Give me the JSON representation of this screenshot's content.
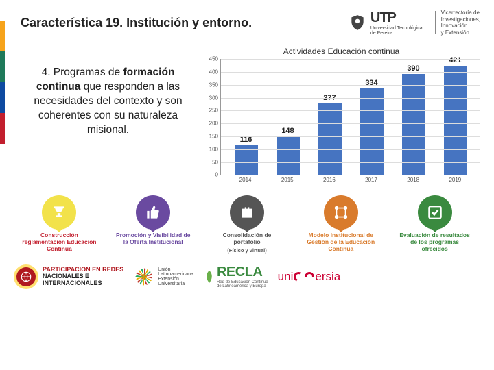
{
  "accent_colors": [
    "#f6a31b",
    "#1f7a5a",
    "#0e4aa1",
    "#c21f2e"
  ],
  "header": {
    "title": "Característica 19. Institución y entorno.",
    "utp": "UTP",
    "utp_sub": "Universidad Tecnológica\nde Pereira",
    "vicer": "Vicerrectoría de\nInvestigaciones,\nInnovación\ny Extensión"
  },
  "desc_html": "4. Programas de <b>formación continua</b> que responden a las necesidades del contexto y son coherentes con su naturaleza misional.",
  "chart": {
    "title": "Actividades Educación continua",
    "type": "bar",
    "categories": [
      "2014",
      "2015",
      "2016",
      "2017",
      "2018",
      "2019"
    ],
    "values": [
      116,
      148,
      277,
      334,
      390,
      421
    ],
    "bar_color": "#4674c1",
    "ylim": [
      0,
      450
    ],
    "ytick_step": 50,
    "grid_color": "#dddddd",
    "label_fontsize": 8,
    "value_fontsize": 11
  },
  "info_cards": [
    {
      "icon": "trophy",
      "bg": "#f2e24a",
      "color": "#c21f2e",
      "label": "Construcción reglamentación Educación Continua"
    },
    {
      "icon": "thumb",
      "bg": "#6a4aa0",
      "color": "#6a4aa0",
      "label": "Promoción y Visibilidad de la Oferta Institucional"
    },
    {
      "icon": "briefcase",
      "bg": "#555555",
      "color": "#555555",
      "label": "Consolidación de portafolio",
      "sub": "(Físico y virtual)"
    },
    {
      "icon": "flow",
      "bg": "#d97b2c",
      "color": "#d97b2c",
      "label": "Modelo Institucional de Gestión de la Educación Continua"
    },
    {
      "icon": "check",
      "bg": "#3a8a3f",
      "color": "#3a8a3f",
      "label": "Evaluación de resultados de los programas ofrecidos"
    }
  ],
  "partners": {
    "badge_l1": "PARTICIPACION EN REDES",
    "badge_l2": "NACIONALES E",
    "badge_l3": "INTERNACIONALES",
    "ulaeu": "Unión\nLatinoamericana\nExtensión\nUniversitaria",
    "recla": "RECLA",
    "recla_sub": "Red de Educación Continua\nde Latinoamérica y Europa",
    "universia_pre": "uni",
    "universia_post": "ersia"
  }
}
